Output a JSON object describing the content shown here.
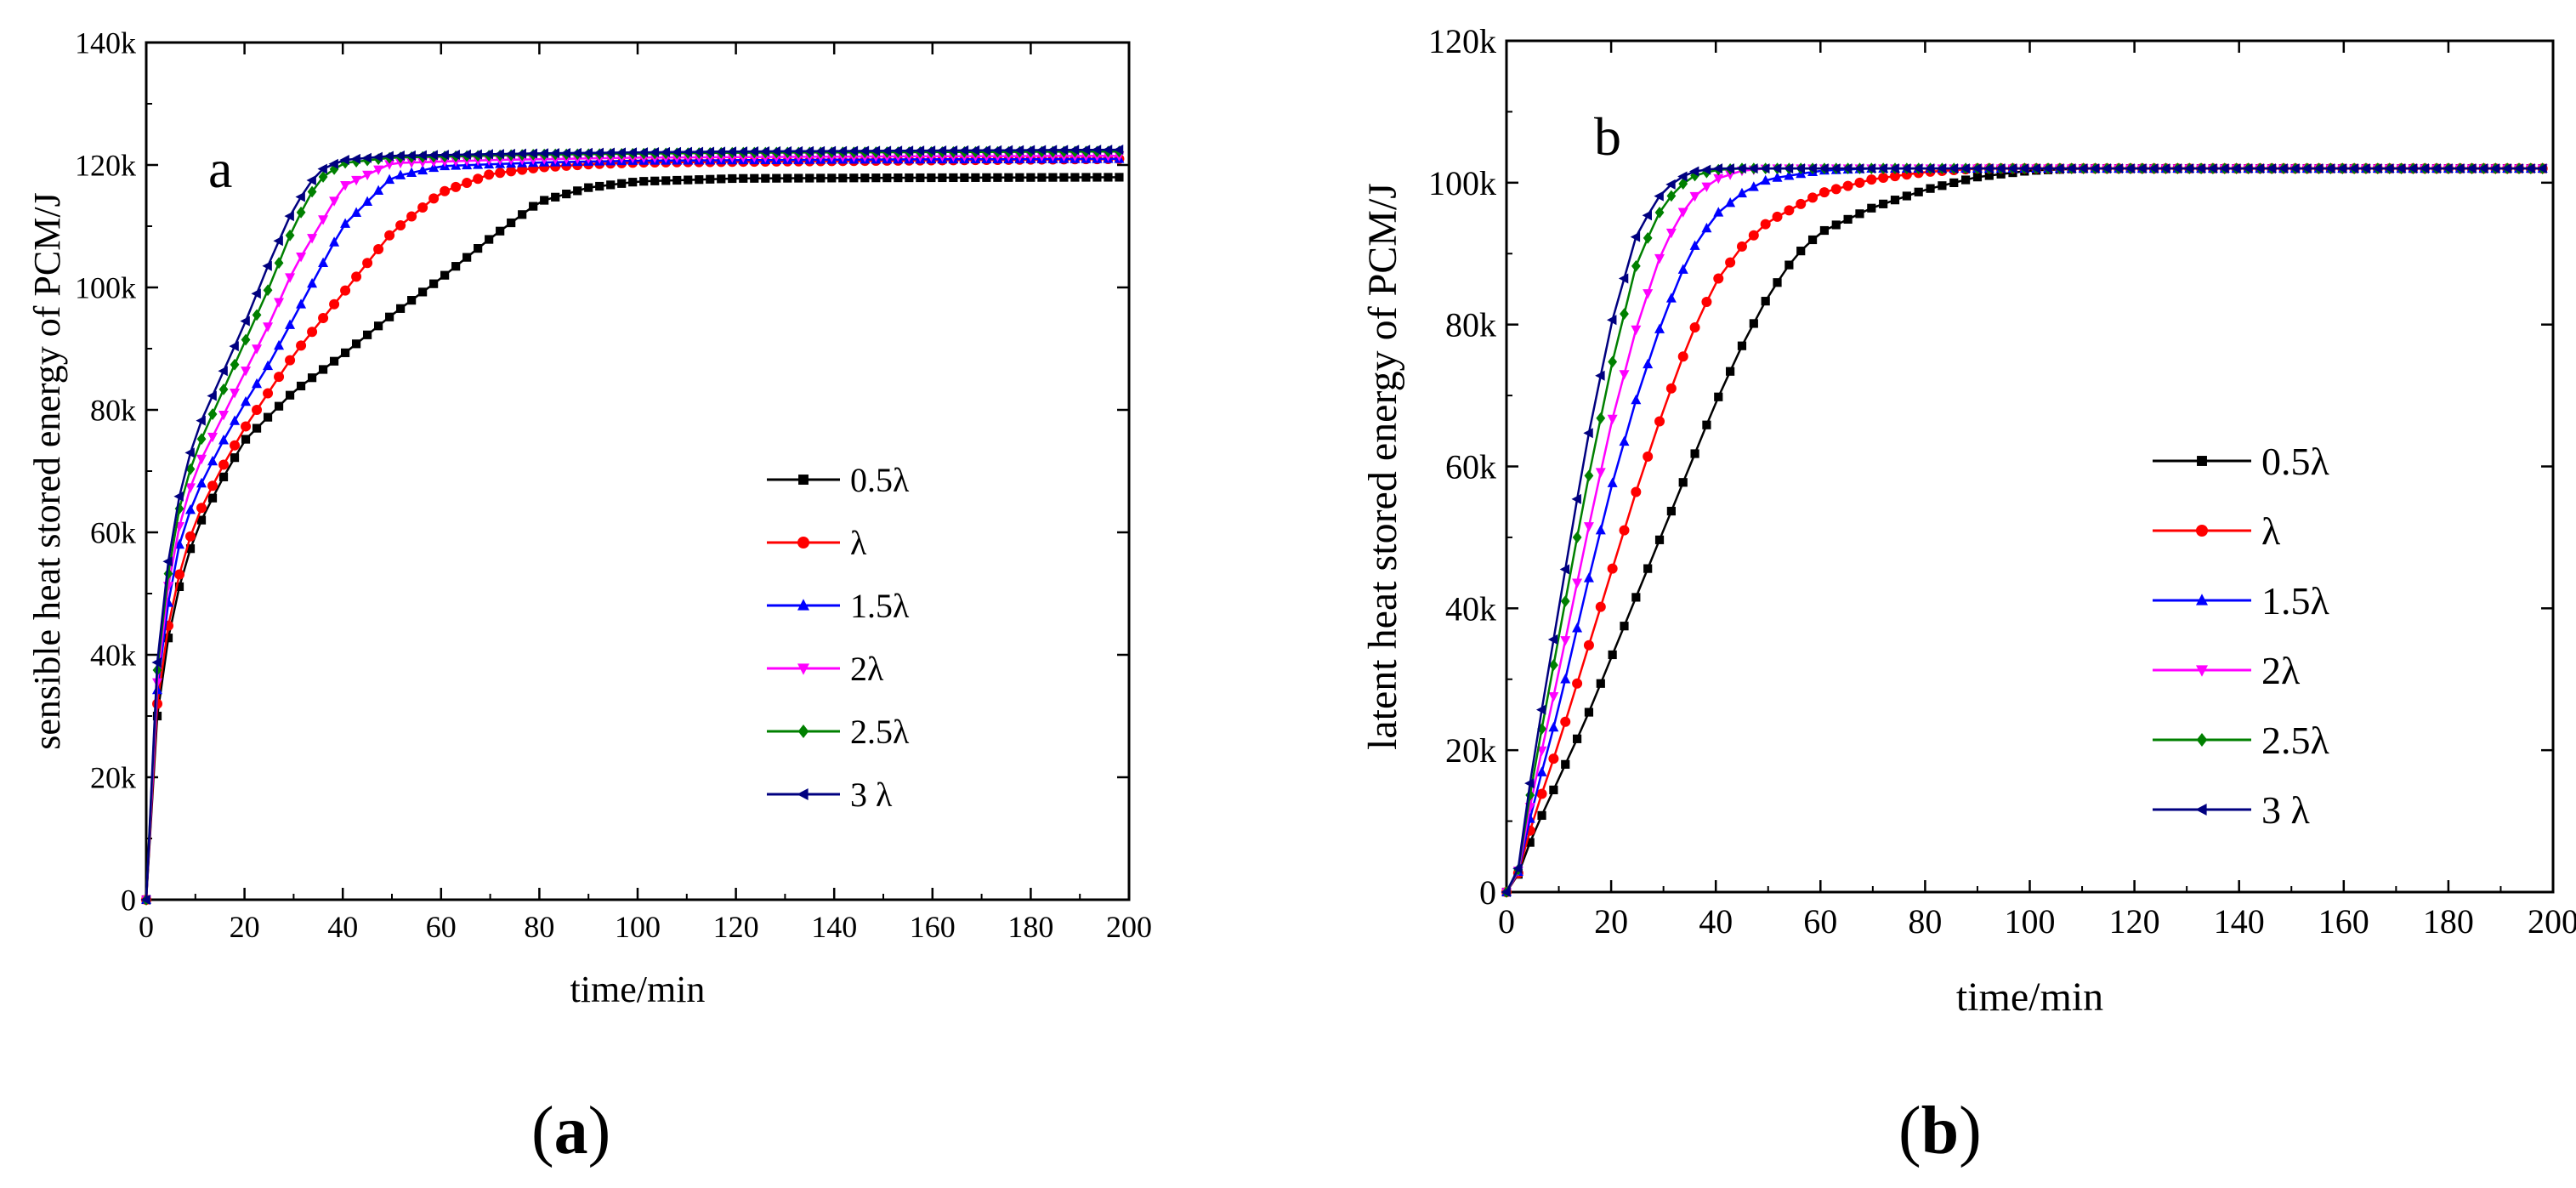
{
  "captions": [
    {
      "open": "(",
      "letter": "a",
      "close": ")"
    },
    {
      "open": "(",
      "letter": "b",
      "close": ")"
    }
  ],
  "series_styles": [
    {
      "name": "0.5λ",
      "color": "#000000",
      "marker": "square"
    },
    {
      "name": "λ",
      "color": "#ff0000",
      "marker": "circle"
    },
    {
      "name": "1.5λ",
      "color": "#0000ff",
      "marker": "triangle-up"
    },
    {
      "name": "2λ",
      "color": "#ff00ff",
      "marker": "triangle-down"
    },
    {
      "name": "2.5λ",
      "color": "#008000",
      "marker": "diamond"
    },
    {
      "name": "3 λ",
      "color": "#000080",
      "marker": "triangle-left"
    }
  ],
  "chart_data": [
    {
      "type": "line",
      "panel_label": "a",
      "title": "",
      "xlabel": "time/min",
      "ylabel": "sensible heat stored energy of PCM/J",
      "xlim": [
        0,
        200
      ],
      "ylim": [
        0,
        140000
      ],
      "x_ticks": [
        "0",
        "20",
        "40",
        "60",
        "80",
        "100",
        "120",
        "140",
        "160",
        "180",
        "200"
      ],
      "y_ticks": [
        "0",
        "20k",
        "40k",
        "60k",
        "80k",
        "100k",
        "120k",
        "140k"
      ],
      "legend_position": "center-right",
      "marker_spacing_min": 2.25,
      "series": [
        {
          "name": "0.5λ",
          "points": [
            [
              0,
              0
            ],
            [
              1,
              15000
            ],
            [
              2,
              28000
            ],
            [
              3,
              36000
            ],
            [
              5,
              45000
            ],
            [
              7,
              52000
            ],
            [
              10,
              60000
            ],
            [
              15,
              68000
            ],
            [
              20,
              75000
            ],
            [
              25,
              79000
            ],
            [
              30,
              83000
            ],
            [
              40,
              89000
            ],
            [
              50,
              95500
            ],
            [
              60,
              101500
            ],
            [
              70,
              108000
            ],
            [
              80,
              114000
            ],
            [
              90,
              116300
            ],
            [
              100,
              117300
            ],
            [
              120,
              117800
            ],
            [
              150,
              117900
            ],
            [
              200,
              118000
            ]
          ]
        },
        {
          "name": "λ",
          "points": [
            [
              0,
              0
            ],
            [
              1,
              16000
            ],
            [
              2,
              30000
            ],
            [
              3,
              38000
            ],
            [
              5,
              47000
            ],
            [
              7,
              54000
            ],
            [
              10,
              62000
            ],
            [
              15,
              70000
            ],
            [
              20,
              77000
            ],
            [
              25,
              83000
            ],
            [
              30,
              89000
            ],
            [
              40,
              99000
            ],
            [
              50,
              109000
            ],
            [
              60,
              115500
            ],
            [
              70,
              118500
            ],
            [
              80,
              119600
            ],
            [
              90,
              120100
            ],
            [
              100,
              120400
            ],
            [
              150,
              120700
            ],
            [
              200,
              121000
            ]
          ]
        },
        {
          "name": "1.5λ",
          "points": [
            [
              0,
              0
            ],
            [
              1,
              17000
            ],
            [
              2,
              32000
            ],
            [
              3,
              41000
            ],
            [
              5,
              51000
            ],
            [
              7,
              59000
            ],
            [
              10,
              66000
            ],
            [
              15,
              74000
            ],
            [
              20,
              81000
            ],
            [
              25,
              87500
            ],
            [
              30,
              95000
            ],
            [
              40,
              110000
            ],
            [
              50,
              118000
            ],
            [
              60,
              119800
            ],
            [
              80,
              120400
            ],
            [
              100,
              120700
            ],
            [
              150,
              120900
            ],
            [
              200,
              121000
            ]
          ]
        },
        {
          "name": "2λ",
          "points": [
            [
              0,
              0
            ],
            [
              1,
              18000
            ],
            [
              2,
              33000
            ],
            [
              3,
              43000
            ],
            [
              5,
              54000
            ],
            [
              7,
              62000
            ],
            [
              10,
              70000
            ],
            [
              15,
              78000
            ],
            [
              20,
              86000
            ],
            [
              25,
              94000
            ],
            [
              30,
              103000
            ],
            [
              40,
              116500
            ],
            [
              50,
              120300
            ],
            [
              70,
              120800
            ],
            [
              100,
              121200
            ],
            [
              150,
              121400
            ],
            [
              200,
              121500
            ]
          ]
        },
        {
          "name": "2.5λ",
          "points": [
            [
              0,
              0
            ],
            [
              1,
              19000
            ],
            [
              2,
              35000
            ],
            [
              3,
              45000
            ],
            [
              5,
              56000
            ],
            [
              7,
              65000
            ],
            [
              10,
              73000
            ],
            [
              15,
              82000
            ],
            [
              20,
              91000
            ],
            [
              25,
              100000
            ],
            [
              30,
              110000
            ],
            [
              35,
              117500
            ],
            [
              40,
              120300
            ],
            [
              50,
              121200
            ],
            [
              80,
              121700
            ],
            [
              120,
              122000
            ],
            [
              200,
              122200
            ]
          ]
        },
        {
          "name": "3 λ",
          "points": [
            [
              0,
              0
            ],
            [
              1,
              20000
            ],
            [
              2,
              36000
            ],
            [
              3,
              47000
            ],
            [
              5,
              58000
            ],
            [
              7,
              67000
            ],
            [
              10,
              76000
            ],
            [
              15,
              85000
            ],
            [
              20,
              94000
            ],
            [
              25,
              104000
            ],
            [
              30,
              113000
            ],
            [
              35,
              119000
            ],
            [
              40,
              120800
            ],
            [
              50,
              121500
            ],
            [
              80,
              121900
            ],
            [
              120,
              122200
            ],
            [
              200,
              122500
            ]
          ]
        }
      ]
    },
    {
      "type": "line",
      "panel_label": "b",
      "title": "",
      "xlabel": "time/min",
      "ylabel": "latent heat stored energy of PCM/J",
      "xlim": [
        0,
        200
      ],
      "ylim": [
        0,
        120000
      ],
      "x_ticks": [
        "0",
        "20",
        "40",
        "60",
        "80",
        "100",
        "120",
        "140",
        "160",
        "180",
        "200"
      ],
      "y_ticks": [
        "0",
        "20k",
        "40k",
        "60k",
        "80k",
        "100k",
        "120k"
      ],
      "legend_position": "center-right",
      "marker_spacing_min": 2.25,
      "series": [
        {
          "name": "0.5λ",
          "points": [
            [
              0,
              0
            ],
            [
              2,
              2000
            ],
            [
              5,
              8000
            ],
            [
              10,
              16000
            ],
            [
              15,
              24000
            ],
            [
              20,
              33000
            ],
            [
              25,
              42000
            ],
            [
              30,
              51000
            ],
            [
              35,
              60000
            ],
            [
              40,
              69000
            ],
            [
              45,
              77000
            ],
            [
              50,
              84000
            ],
            [
              55,
              89500
            ],
            [
              60,
              93000
            ],
            [
              70,
              96500
            ],
            [
              80,
              99000
            ],
            [
              90,
              100800
            ],
            [
              100,
              101700
            ],
            [
              110,
              102000
            ],
            [
              200,
              102000
            ]
          ]
        },
        {
          "name": "λ",
          "points": [
            [
              0,
              0
            ],
            [
              2,
              2000
            ],
            [
              5,
              10000
            ],
            [
              10,
              21000
            ],
            [
              15,
              33000
            ],
            [
              20,
              45000
            ],
            [
              25,
              57000
            ],
            [
              30,
              68000
            ],
            [
              35,
              78000
            ],
            [
              40,
              86000
            ],
            [
              45,
              91000
            ],
            [
              50,
              94500
            ],
            [
              60,
              98500
            ],
            [
              70,
              100500
            ],
            [
              80,
              101500
            ],
            [
              90,
              102000
            ],
            [
              200,
              102000
            ]
          ]
        },
        {
          "name": "1.5λ",
          "points": [
            [
              0,
              0
            ],
            [
              2,
              2000
            ],
            [
              5,
              12000
            ],
            [
              10,
              26000
            ],
            [
              15,
              42000
            ],
            [
              20,
              57000
            ],
            [
              25,
              70000
            ],
            [
              30,
              81000
            ],
            [
              35,
              90000
            ],
            [
              40,
              95500
            ],
            [
              45,
              98500
            ],
            [
              50,
              100500
            ],
            [
              60,
              101700
            ],
            [
              70,
              102000
            ],
            [
              200,
              102000
            ]
          ]
        },
        {
          "name": "2λ",
          "points": [
            [
              0,
              0
            ],
            [
              2,
              2000
            ],
            [
              5,
              14000
            ],
            [
              10,
              31000
            ],
            [
              15,
              49000
            ],
            [
              20,
              66000
            ],
            [
              25,
              80000
            ],
            [
              30,
              91000
            ],
            [
              35,
              97500
            ],
            [
              40,
              100500
            ],
            [
              45,
              101700
            ],
            [
              50,
              102000
            ],
            [
              200,
              102000
            ]
          ]
        },
        {
          "name": "2.5λ",
          "points": [
            [
              0,
              0
            ],
            [
              2,
              2000
            ],
            [
              5,
              16000
            ],
            [
              10,
              36000
            ],
            [
              15,
              56000
            ],
            [
              20,
              74000
            ],
            [
              25,
              89000
            ],
            [
              30,
              97000
            ],
            [
              35,
              100800
            ],
            [
              40,
              101800
            ],
            [
              45,
              102000
            ],
            [
              200,
              102000
            ]
          ]
        },
        {
          "name": "3 λ",
          "points": [
            [
              0,
              0
            ],
            [
              2,
              2000
            ],
            [
              5,
              18000
            ],
            [
              10,
              40000
            ],
            [
              15,
              62000
            ],
            [
              20,
              80000
            ],
            [
              25,
              93000
            ],
            [
              30,
              99000
            ],
            [
              35,
              101500
            ],
            [
              40,
              102000
            ],
            [
              200,
              102000
            ]
          ]
        }
      ]
    }
  ]
}
